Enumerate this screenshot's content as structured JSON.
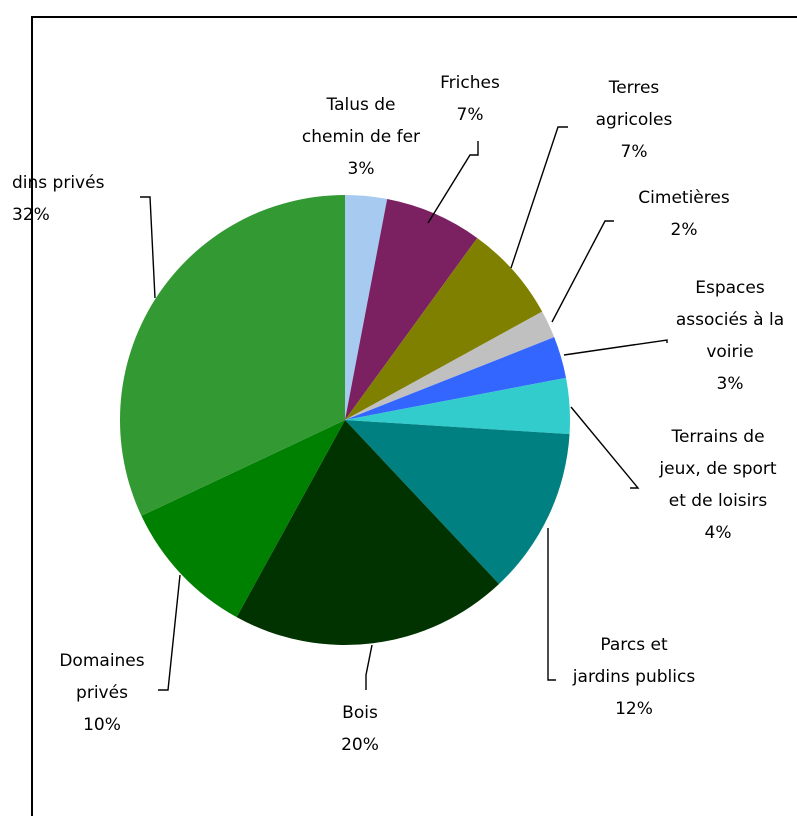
{
  "chart_data": {
    "type": "pie",
    "title": "",
    "start_angle_deg": 90,
    "direction": "clockwise",
    "slices": [
      {
        "label": [
          "Talus de",
          "chemin de fer"
        ],
        "pct_label": "3%",
        "value": 3,
        "color": "#a6caf0"
      },
      {
        "label": [
          "Friches"
        ],
        "pct_label": "7%",
        "value": 7,
        "color": "#7b2060"
      },
      {
        "label": [
          "Terres",
          "agricoles"
        ],
        "pct_label": "7%",
        "value": 7,
        "color": "#808000"
      },
      {
        "label": [
          "Cimetières"
        ],
        "pct_label": "2%",
        "value": 2,
        "color": "#c0c0c0"
      },
      {
        "label": [
          "Espaces",
          "associés à la",
          "voirie"
        ],
        "pct_label": "3%",
        "value": 3,
        "color": "#3366ff"
      },
      {
        "label": [
          "Terrains de",
          "jeux, de sport",
          "et de loisirs"
        ],
        "pct_label": "4%",
        "value": 4,
        "color": "#33cccc"
      },
      {
        "label": [
          "Parcs et",
          "jardins publics"
        ],
        "pct_label": "12%",
        "value": 12,
        "color": "#008080"
      },
      {
        "label": [
          "Bois"
        ],
        "pct_label": "20%",
        "value": 20,
        "color": "#003300"
      },
      {
        "label": [
          "Domaines",
          "privés"
        ],
        "pct_label": "10%",
        "value": 10,
        "color": "#008000"
      },
      {
        "label": [
          "dins privés"
        ],
        "pct_label": "32%",
        "value": 32,
        "color": "#339933"
      }
    ]
  }
}
